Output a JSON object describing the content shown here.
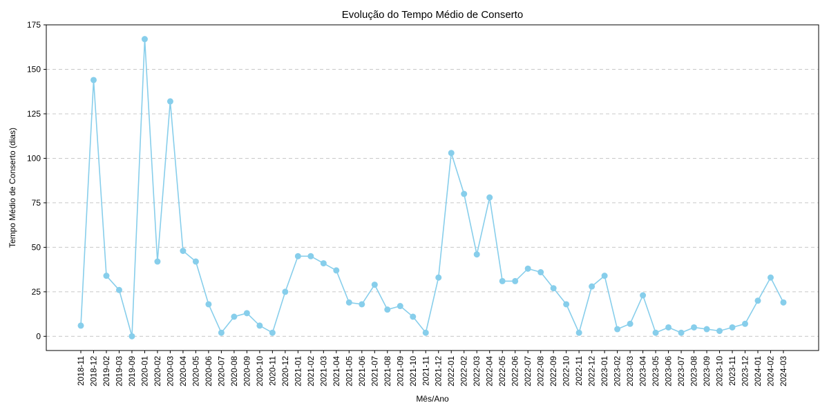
{
  "chart_data": {
    "type": "line",
    "title": "Evolução do Tempo Médio de Conserto",
    "xlabel": "Mês/Ano",
    "ylabel": "Tempo Médio de Conserto (dias)",
    "ylim": [
      -8,
      175
    ],
    "yticks": [
      0,
      25,
      50,
      75,
      100,
      125,
      150,
      175
    ],
    "grid": "y",
    "color": "#87ceeb",
    "categories": [
      "2018-11",
      "2018-12",
      "2019-02",
      "2019-03",
      "2019-09",
      "2020-01",
      "2020-02",
      "2020-03",
      "2020-04",
      "2020-05",
      "2020-06",
      "2020-07",
      "2020-08",
      "2020-09",
      "2020-10",
      "2020-11",
      "2020-12",
      "2021-01",
      "2021-02",
      "2021-03",
      "2021-04",
      "2021-05",
      "2021-06",
      "2021-07",
      "2021-08",
      "2021-09",
      "2021-10",
      "2021-11",
      "2021-12",
      "2022-01",
      "2022-02",
      "2022-03",
      "2022-04",
      "2022-05",
      "2022-06",
      "2022-07",
      "2022-08",
      "2022-09",
      "2022-10",
      "2022-11",
      "2022-12",
      "2023-01",
      "2023-02",
      "2023-03",
      "2023-04",
      "2023-05",
      "2023-06",
      "2023-07",
      "2023-08",
      "2023-09",
      "2023-10",
      "2023-11",
      "2023-12",
      "2024-01",
      "2024-02",
      "2024-03"
    ],
    "values": [
      6,
      144,
      34,
      26,
      0,
      167,
      42,
      132,
      48,
      42,
      18,
      2,
      11,
      13,
      6,
      2,
      25,
      45,
      45,
      41,
      37,
      19,
      18,
      29,
      15,
      17,
      11,
      2,
      33,
      103,
      80,
      46,
      78,
      31,
      31,
      38,
      36,
      27,
      18,
      2,
      28,
      34,
      4,
      7,
      23,
      2,
      5,
      2,
      5,
      4,
      3,
      5,
      7,
      20,
      33,
      19
    ]
  }
}
